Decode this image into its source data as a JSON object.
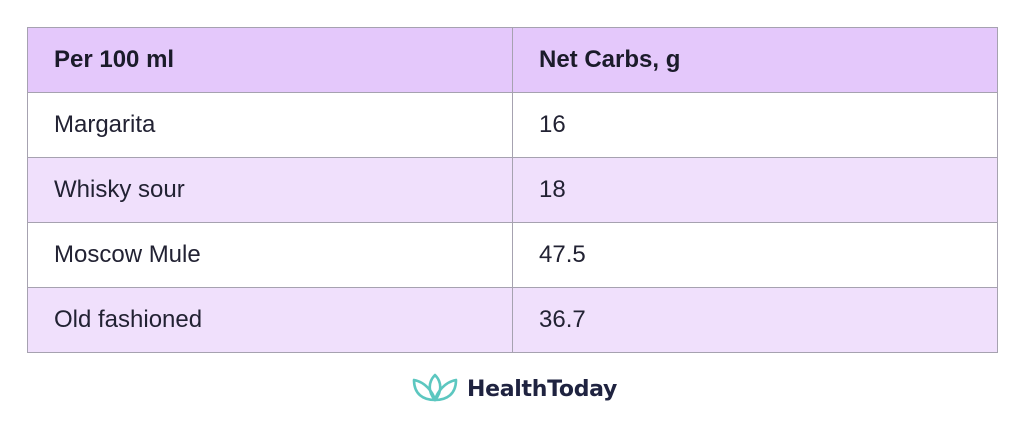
{
  "table": {
    "headers": [
      "Per 100 ml",
      "Net Carbs, g"
    ],
    "rows": [
      [
        "Margarita",
        "16"
      ],
      [
        "Whisky sour",
        "18"
      ],
      [
        "Moscow Mule",
        "47.5"
      ],
      [
        "Old fashioned",
        "36.7"
      ]
    ]
  },
  "brand": {
    "name": "HealthToday",
    "icon": "lotus-icon",
    "icon_color": "#5cc7c0"
  },
  "colors": {
    "header_bg": "#e4c8fb",
    "row_alt_bg": "#f0e0fc",
    "row_bg": "#ffffff",
    "border": "#a6a2b0"
  }
}
